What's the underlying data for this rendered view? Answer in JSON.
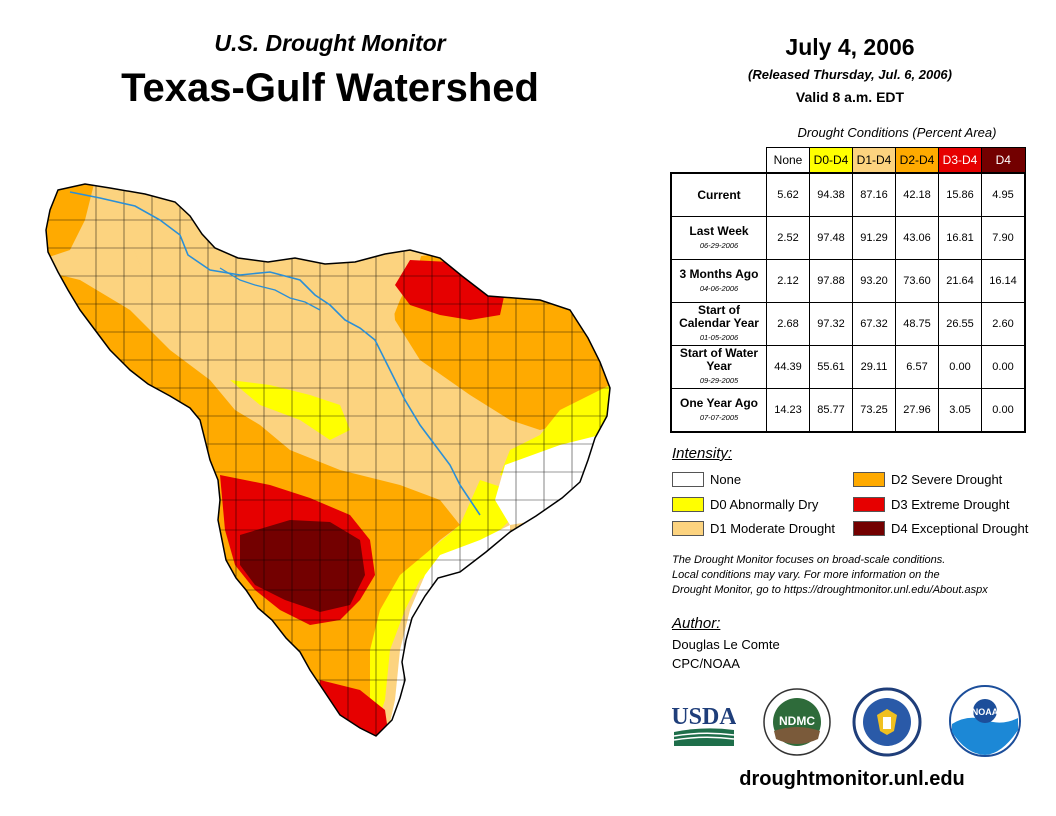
{
  "header": {
    "subtitle": "U.S. Drought Monitor",
    "title": "Texas-Gulf Watershed",
    "date": "July 4, 2006",
    "released": "(Released Thursday, Jul. 6, 2006)",
    "valid": "Valid 8 a.m. EDT"
  },
  "table": {
    "caption": "Drought Conditions (Percent Area)",
    "columns": [
      "None",
      "D0-D4",
      "D1-D4",
      "D2-D4",
      "D3-D4",
      "D4"
    ],
    "column_colors": [
      "#ffffff",
      "#ffff00",
      "#fcd37f",
      "#ffaa00",
      "#e60000",
      "#730000"
    ],
    "rows": [
      {
        "label": "Current",
        "date": "",
        "values": [
          "5.62",
          "94.38",
          "87.16",
          "42.18",
          "15.86",
          "4.95"
        ]
      },
      {
        "label": "Last Week",
        "date": "06-29-2006",
        "values": [
          "2.52",
          "97.48",
          "91.29",
          "43.06",
          "16.81",
          "7.90"
        ]
      },
      {
        "label": "3 Months Ago",
        "date": "04-06-2006",
        "values": [
          "2.12",
          "97.88",
          "93.20",
          "73.60",
          "21.64",
          "16.14"
        ]
      },
      {
        "label": "Start of Calendar Year",
        "date": "01-05-2006",
        "values": [
          "2.68",
          "97.32",
          "67.32",
          "48.75",
          "26.55",
          "2.60"
        ]
      },
      {
        "label": "Start of Water Year",
        "date": "09-29-2005",
        "values": [
          "44.39",
          "55.61",
          "29.11",
          "6.57",
          "0.00",
          "0.00"
        ]
      },
      {
        "label": "One Year Ago",
        "date": "07-07-2005",
        "values": [
          "14.23",
          "85.77",
          "73.25",
          "27.96",
          "3.05",
          "0.00"
        ]
      }
    ]
  },
  "legend": {
    "label": "Intensity:",
    "items": [
      {
        "label": "None",
        "color": "#ffffff"
      },
      {
        "label": "D0 Abnormally Dry",
        "color": "#ffff00"
      },
      {
        "label": "D1 Moderate Drought",
        "color": "#fcd37f"
      },
      {
        "label": "D2 Severe Drought",
        "color": "#ffaa00"
      },
      {
        "label": "D3 Extreme Drought",
        "color": "#e60000"
      },
      {
        "label": "D4 Exceptional Drought",
        "color": "#730000"
      }
    ]
  },
  "note": {
    "line1": "The Drought Monitor focuses on broad-scale conditions.",
    "line2": "Local conditions may vary. For more information on the",
    "line3": "Drought Monitor, go to https://droughtmonitor.unl.edu/About.aspx"
  },
  "author": {
    "label": "Author:",
    "name": "Douglas Le Comte",
    "org": "CPC/NOAA"
  },
  "logos": {
    "usda": "USDA",
    "ndmc": "NDMC",
    "noaa": "NOAA"
  },
  "footer": {
    "website": "droughtmonitor.unl.edu"
  }
}
